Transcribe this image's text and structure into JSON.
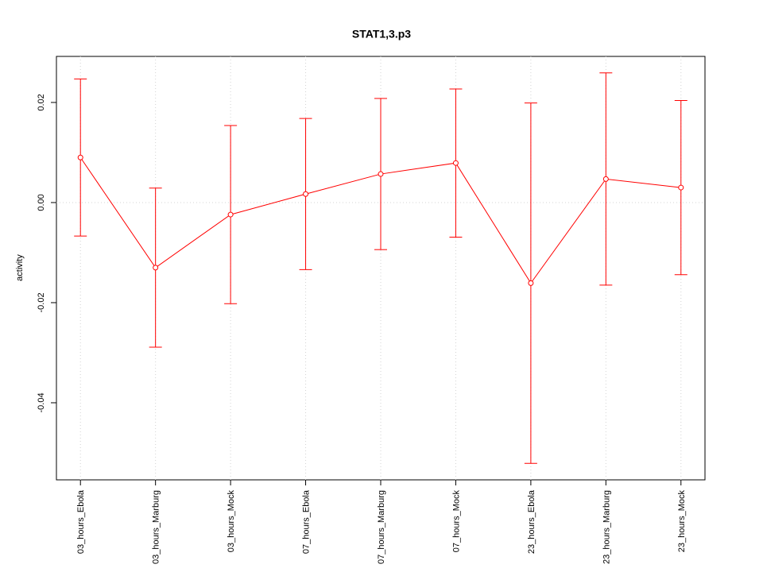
{
  "chart_data": {
    "type": "line",
    "title": "STAT1,3.p3",
    "ylabel": "activity",
    "categories": [
      "03_hours_Ebola",
      "03_hours_Marburg",
      "03_hours_Mock",
      "07_hours_Ebola",
      "07_hours_Marburg",
      "07_hours_Mock",
      "23_hours_Ebola",
      "23_hours_Marburg",
      "23_hours_Mock"
    ],
    "series": [
      {
        "color": "#ff0000",
        "values": [
          0.009,
          -0.013,
          -0.0024,
          0.0017,
          0.0057,
          0.0079,
          -0.0161,
          0.0047,
          0.003
        ],
        "errors": [
          0.0157,
          0.0159,
          0.0178,
          0.0151,
          0.0151,
          0.0148,
          0.036,
          0.0212,
          0.0174
        ]
      }
    ],
    "ylim": [
      -0.0554,
      0.0292
    ],
    "yticks": [
      -0.04,
      -0.02,
      {
        "value": 0,
        "label": "0.00"
      },
      0.02
    ],
    "hline": 0,
    "grid": true
  }
}
